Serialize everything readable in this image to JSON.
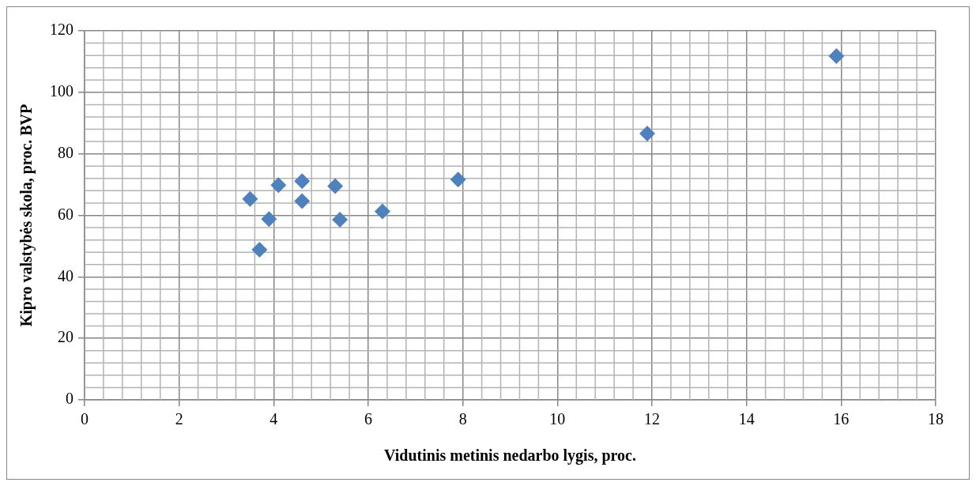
{
  "chart_data": {
    "type": "scatter",
    "xlabel": "Vidutinis metinis nedarbo lygis, proc.",
    "ylabel": "Kipro valstybės skola, proc. BVP",
    "x": [
      3.5,
      3.9,
      3.7,
      4.1,
      4.6,
      4.6,
      5.3,
      5.4,
      6.3,
      7.9,
      11.9,
      15.9
    ],
    "series": [
      {
        "color": "#4f81bd",
        "values": [
          65.3,
          58.8,
          48.8,
          69.8,
          71.1,
          64.6,
          69.5,
          58.6,
          61.3,
          71.6,
          86.6,
          111.8
        ]
      }
    ],
    "xlim": [
      0,
      18
    ],
    "xticks": [
      0,
      2,
      4,
      6,
      8,
      10,
      12,
      14,
      16,
      18
    ],
    "ylim": [
      0,
      120
    ],
    "yticks": [
      0,
      20,
      40,
      60,
      80,
      100,
      120
    ],
    "grid": true,
    "marker": "diamond",
    "legend": false
  }
}
